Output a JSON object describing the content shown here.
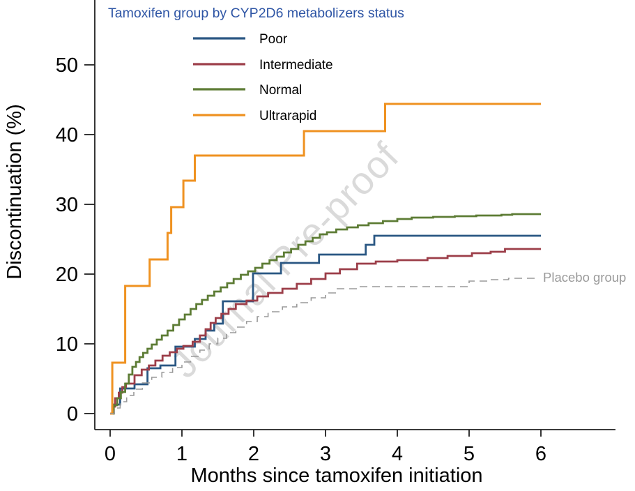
{
  "chart_data": {
    "type": "line",
    "subtype": "kaplan-meier-step",
    "title": "",
    "xlabel": "Months since tamoxifen initiation",
    "ylabel": "Discontinuation (%)",
    "xlim": [
      0,
      6
    ],
    "ylim": [
      0,
      50
    ],
    "xticks": [
      "0",
      "1",
      "2",
      "3",
      "4",
      "5",
      "6"
    ],
    "yticks": [
      "0",
      "10",
      "20",
      "30",
      "40",
      "50"
    ],
    "grid": false,
    "watermark": "Journal Pre-proof",
    "legend": {
      "title": "Tamoxifen group by CYP2D6 metabolizers status",
      "title_color": "#2e55a5",
      "position": "top-left-inside",
      "entries": [
        "Poor",
        "Intermediate",
        "Normal",
        "Ultrarapid"
      ]
    },
    "series": [
      {
        "name": "Poor",
        "color": "#2a5783",
        "width": 2.8,
        "dash": null,
        "end": 6,
        "steps": [
          [
            0,
            0
          ],
          [
            0.04,
            1.3
          ],
          [
            0.14,
            3.6
          ],
          [
            0.34,
            4.2
          ],
          [
            0.52,
            6.5
          ],
          [
            0.7,
            6.9
          ],
          [
            0.91,
            9.6
          ],
          [
            1.18,
            10.7
          ],
          [
            1.33,
            11.9
          ],
          [
            1.45,
            12.9
          ],
          [
            1.57,
            16.1
          ],
          [
            1.99,
            20.1
          ],
          [
            2.38,
            21.6
          ],
          [
            2.91,
            22.8
          ],
          [
            3.56,
            24.2
          ],
          [
            3.68,
            25.5
          ],
          [
            6,
            25.5
          ]
        ]
      },
      {
        "name": "Intermediate",
        "color": "#9c3e49",
        "width": 2.8,
        "dash": null,
        "end": 6,
        "steps": [
          [
            0,
            0
          ],
          [
            0.03,
            1.0
          ],
          [
            0.07,
            2.2
          ],
          [
            0.12,
            3.0
          ],
          [
            0.17,
            3.8
          ],
          [
            0.22,
            4.3
          ],
          [
            0.34,
            5.5
          ],
          [
            0.44,
            6.3
          ],
          [
            0.54,
            6.9
          ],
          [
            0.63,
            7.6
          ],
          [
            0.73,
            8.3
          ],
          [
            0.83,
            8.8
          ],
          [
            0.93,
            9.3
          ],
          [
            1.02,
            9.7
          ],
          [
            1.15,
            10.3
          ],
          [
            1.25,
            11.2
          ],
          [
            1.33,
            12.1
          ],
          [
            1.4,
            13.0
          ],
          [
            1.47,
            13.7
          ],
          [
            1.55,
            14.3
          ],
          [
            1.65,
            15.0
          ],
          [
            1.75,
            15.7
          ],
          [
            1.9,
            16.2
          ],
          [
            2.05,
            16.8
          ],
          [
            2.2,
            17.3
          ],
          [
            2.4,
            17.9
          ],
          [
            2.6,
            18.6
          ],
          [
            2.8,
            19.3
          ],
          [
            3.0,
            20.1
          ],
          [
            3.2,
            20.7
          ],
          [
            3.44,
            21.5
          ],
          [
            3.7,
            21.8
          ],
          [
            4.0,
            22.0
          ],
          [
            4.42,
            22.3
          ],
          [
            4.7,
            22.6
          ],
          [
            5.04,
            23.0
          ],
          [
            5.3,
            23.2
          ],
          [
            5.5,
            23.6
          ],
          [
            6,
            23.6
          ]
        ]
      },
      {
        "name": "Normal",
        "color": "#5d7c35",
        "width": 2.8,
        "dash": null,
        "end": 6,
        "steps": [
          [
            0,
            0
          ],
          [
            0.05,
            1.2
          ],
          [
            0.1,
            2.2
          ],
          [
            0.15,
            3.1
          ],
          [
            0.21,
            4.3
          ],
          [
            0.26,
            5.6
          ],
          [
            0.31,
            6.7
          ],
          [
            0.36,
            7.4
          ],
          [
            0.41,
            8.1
          ],
          [
            0.46,
            8.7
          ],
          [
            0.52,
            9.3
          ],
          [
            0.58,
            9.9
          ],
          [
            0.65,
            10.6
          ],
          [
            0.72,
            11.2
          ],
          [
            0.8,
            11.9
          ],
          [
            0.88,
            12.7
          ],
          [
            0.96,
            13.5
          ],
          [
            1.04,
            14.2
          ],
          [
            1.12,
            15.0
          ],
          [
            1.2,
            15.7
          ],
          [
            1.28,
            16.3
          ],
          [
            1.36,
            16.9
          ],
          [
            1.45,
            17.5
          ],
          [
            1.54,
            18.1
          ],
          [
            1.63,
            18.7
          ],
          [
            1.72,
            19.3
          ],
          [
            1.82,
            19.9
          ],
          [
            1.92,
            20.4
          ],
          [
            2.02,
            20.9
          ],
          [
            2.12,
            21.5
          ],
          [
            2.22,
            22.0
          ],
          [
            2.32,
            22.5
          ],
          [
            2.42,
            23.1
          ],
          [
            2.52,
            23.6
          ],
          [
            2.62,
            24.2
          ],
          [
            2.72,
            24.7
          ],
          [
            2.82,
            25.2
          ],
          [
            2.92,
            25.7
          ],
          [
            3.02,
            26.0
          ],
          [
            3.15,
            26.4
          ],
          [
            3.3,
            26.7
          ],
          [
            3.45,
            27.0
          ],
          [
            3.6,
            27.3
          ],
          [
            3.8,
            27.6
          ],
          [
            4.0,
            27.9
          ],
          [
            4.2,
            28.1
          ],
          [
            4.5,
            28.2
          ],
          [
            4.8,
            28.3
          ],
          [
            5.1,
            28.4
          ],
          [
            5.45,
            28.5
          ],
          [
            5.6,
            28.6
          ],
          [
            6,
            28.6
          ]
        ]
      },
      {
        "name": "Ultrarapid",
        "color": "#ef9221",
        "width": 3.0,
        "dash": null,
        "end": 6,
        "steps": [
          [
            0,
            0
          ],
          [
            0.03,
            7.3
          ],
          [
            0.21,
            18.3
          ],
          [
            0.55,
            22.1
          ],
          [
            0.8,
            25.9
          ],
          [
            0.85,
            29.6
          ],
          [
            1.02,
            33.4
          ],
          [
            1.18,
            37.0
          ],
          [
            2.7,
            40.5
          ],
          [
            3.83,
            44.4
          ],
          [
            6,
            44.4
          ]
        ]
      },
      {
        "name": "Placebo",
        "color": "#9a9a9a",
        "width": 1.6,
        "dash": "11 7",
        "in_legend": false,
        "end": 5.95,
        "end_label": "Placebo group",
        "steps": [
          [
            0,
            0
          ],
          [
            0.06,
            0.8
          ],
          [
            0.14,
            1.7
          ],
          [
            0.23,
            2.6
          ],
          [
            0.33,
            3.5
          ],
          [
            0.45,
            4.4
          ],
          [
            0.58,
            5.2
          ],
          [
            0.72,
            5.9
          ],
          [
            0.87,
            6.6
          ],
          [
            1.0,
            7.4
          ],
          [
            1.12,
            8.2
          ],
          [
            1.25,
            9.1
          ],
          [
            1.38,
            10.0
          ],
          [
            1.5,
            10.8
          ],
          [
            1.62,
            11.6
          ],
          [
            1.75,
            12.4
          ],
          [
            1.9,
            13.2
          ],
          [
            2.05,
            13.9
          ],
          [
            2.2,
            14.6
          ],
          [
            2.4,
            15.3
          ],
          [
            2.6,
            15.9
          ],
          [
            2.8,
            16.6
          ],
          [
            3.0,
            17.3
          ],
          [
            3.15,
            17.9
          ],
          [
            3.45,
            18.2
          ],
          [
            5.0,
            19.0
          ],
          [
            5.3,
            19.2
          ],
          [
            5.55,
            19.4
          ]
        ]
      }
    ]
  }
}
